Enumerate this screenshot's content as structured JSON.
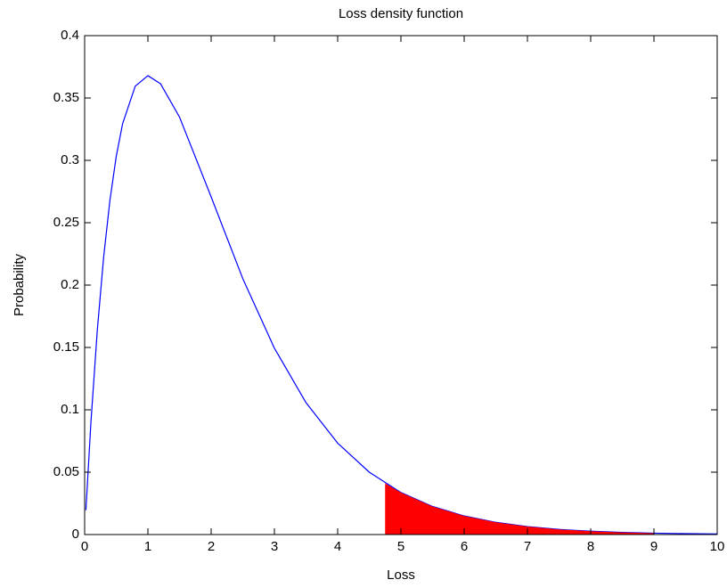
{
  "chart_data": {
    "type": "line",
    "title": "Loss density function",
    "xlabel": "Loss",
    "ylabel": "Probability",
    "xlim": [
      0,
      10
    ],
    "ylim": [
      0,
      0.4
    ],
    "xticks": [
      0,
      1,
      2,
      3,
      4,
      5,
      6,
      7,
      8,
      9,
      10
    ],
    "yticks": [
      0,
      0.05,
      0.1,
      0.15,
      0.2,
      0.25,
      0.3,
      0.35,
      0.4
    ],
    "grid": false,
    "series": [
      {
        "kind": "line",
        "color": "#0000ff",
        "x": [
          0.02,
          0.1,
          0.2,
          0.3,
          0.4,
          0.5,
          0.6,
          0.8,
          1,
          1.2,
          1.5,
          2,
          2.5,
          3,
          3.5,
          4,
          4.5,
          5,
          5.5,
          6,
          6.5,
          7,
          7.5,
          8,
          8.5,
          9,
          9.5,
          10
        ],
        "values": [
          0.0196,
          0.0905,
          0.1637,
          0.2222,
          0.2681,
          0.3033,
          0.3293,
          0.3595,
          0.3679,
          0.3614,
          0.3347,
          0.2707,
          0.2052,
          0.1494,
          0.1057,
          0.0733,
          0.05,
          0.0337,
          0.0225,
          0.0149,
          0.0098,
          0.0064,
          0.0041,
          0.0027,
          0.0017,
          0.0011,
          0.0007,
          0.0005
        ]
      },
      {
        "kind": "area",
        "color": "#ff0000",
        "x": [
          4.75,
          5,
          5.5,
          6,
          6.5,
          7,
          7.5,
          8,
          8.5,
          9
        ],
        "values": [
          0.0411,
          0.0337,
          0.0225,
          0.0149,
          0.0098,
          0.0064,
          0.0041,
          0.0027,
          0.0017,
          0.0011
        ]
      }
    ]
  }
}
